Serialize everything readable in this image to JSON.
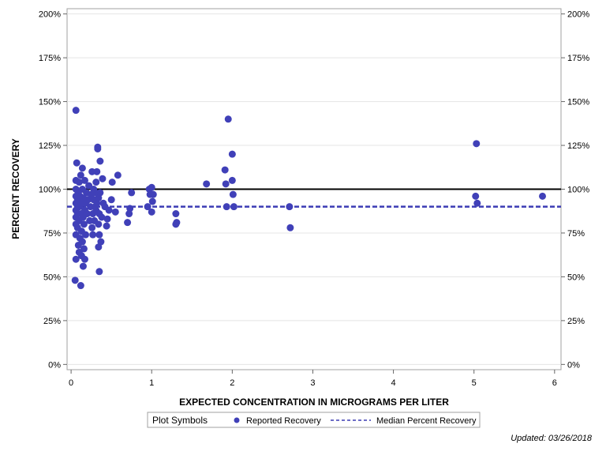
{
  "chart_data": {
    "type": "scatter",
    "xlabel": "EXPECTED CONCENTRATION IN MICROGRAMS PER LITER",
    "ylabel": "PERCENT RECOVERY",
    "xlim": [
      -0.05,
      6.08
    ],
    "ylim": [
      -3,
      203
    ],
    "x_ticks": [
      0,
      1,
      2,
      3,
      4,
      5,
      6
    ],
    "x_tick_labels": [
      "0",
      "1",
      "2",
      "3",
      "4",
      "5",
      "6"
    ],
    "y_ticks": [
      0,
      25,
      50,
      75,
      100,
      125,
      150,
      175,
      200
    ],
    "y_tick_labels": [
      "0%",
      "25%",
      "50%",
      "75%",
      "100%",
      "125%",
      "150%",
      "175%",
      "200%"
    ],
    "grid": "horizontal",
    "reference_lines": [
      {
        "name": "100% recovery",
        "y": 100,
        "style": "solid",
        "color": "#000000"
      },
      {
        "name": "Median Percent Recovery",
        "y": 90,
        "style": "dashed",
        "color": "#3c3cb4"
      }
    ],
    "series": [
      {
        "name": "Reported Recovery",
        "color": "#4040b8",
        "points": [
          [
            0.06,
            145
          ],
          [
            0.05,
            48
          ],
          [
            0.06,
            60
          ],
          [
            0.06,
            74
          ],
          [
            0.06,
            80
          ],
          [
            0.06,
            84
          ],
          [
            0.06,
            88
          ],
          [
            0.06,
            92
          ],
          [
            0.06,
            96
          ],
          [
            0.06,
            100
          ],
          [
            0.06,
            105
          ],
          [
            0.07,
            115
          ],
          [
            0.08,
            78
          ],
          [
            0.08,
            86
          ],
          [
            0.08,
            94
          ],
          [
            0.09,
            68
          ],
          [
            0.09,
            98
          ],
          [
            0.1,
            64
          ],
          [
            0.1,
            82
          ],
          [
            0.1,
            90
          ],
          [
            0.1,
            104
          ],
          [
            0.11,
            72
          ],
          [
            0.11,
            96
          ],
          [
            0.12,
            45
          ],
          [
            0.12,
            86
          ],
          [
            0.12,
            108
          ],
          [
            0.13,
            62
          ],
          [
            0.13,
            76
          ],
          [
            0.13,
            92
          ],
          [
            0.14,
            70
          ],
          [
            0.14,
            100
          ],
          [
            0.14,
            112
          ],
          [
            0.15,
            56
          ],
          [
            0.15,
            84
          ],
          [
            0.15,
            95
          ],
          [
            0.16,
            66
          ],
          [
            0.16,
            80
          ],
          [
            0.17,
            60
          ],
          [
            0.17,
            88
          ],
          [
            0.17,
            105
          ],
          [
            0.18,
            74
          ],
          [
            0.18,
            92
          ],
          [
            0.19,
            98
          ],
          [
            0.2,
            86
          ],
          [
            0.21,
            94
          ],
          [
            0.22,
            102
          ],
          [
            0.23,
            82
          ],
          [
            0.24,
            90
          ],
          [
            0.25,
            97
          ],
          [
            0.26,
            78
          ],
          [
            0.26,
            110
          ],
          [
            0.27,
            74
          ],
          [
            0.27,
            86
          ],
          [
            0.28,
            94
          ],
          [
            0.28,
            100
          ],
          [
            0.29,
            82
          ],
          [
            0.3,
            90
          ],
          [
            0.3,
            98
          ],
          [
            0.31,
            88
          ],
          [
            0.31,
            104
          ],
          [
            0.32,
            92
          ],
          [
            0.32,
            110
          ],
          [
            0.33,
            124
          ],
          [
            0.33,
            123
          ],
          [
            0.34,
            80
          ],
          [
            0.34,
            67
          ],
          [
            0.34,
            95
          ],
          [
            0.35,
            53
          ],
          [
            0.35,
            74
          ],
          [
            0.35,
            86
          ],
          [
            0.36,
            98
          ],
          [
            0.36,
            116
          ],
          [
            0.37,
            70
          ],
          [
            0.38,
            84
          ],
          [
            0.39,
            106
          ],
          [
            0.4,
            92
          ],
          [
            0.42,
            90
          ],
          [
            0.44,
            79
          ],
          [
            0.45,
            83
          ],
          [
            0.47,
            88
          ],
          [
            0.5,
            94
          ],
          [
            0.51,
            104
          ],
          [
            0.55,
            87
          ],
          [
            0.58,
            108
          ],
          [
            0.7,
            81
          ],
          [
            0.72,
            86
          ],
          [
            0.73,
            89
          ],
          [
            0.75,
            98
          ],
          [
            0.95,
            90
          ],
          [
            0.97,
            100
          ],
          [
            0.98,
            97
          ],
          [
            1.0,
            101
          ],
          [
            1.0,
            87
          ],
          [
            1.01,
            93
          ],
          [
            1.02,
            97
          ],
          [
            1.3,
            80
          ],
          [
            1.3,
            86
          ],
          [
            1.31,
            81
          ],
          [
            1.68,
            103
          ],
          [
            1.91,
            111
          ],
          [
            1.92,
            103
          ],
          [
            1.93,
            90
          ],
          [
            1.95,
            140
          ],
          [
            2.0,
            105
          ],
          [
            2.0,
            120
          ],
          [
            2.01,
            97
          ],
          [
            2.02,
            90
          ],
          [
            2.71,
            90
          ],
          [
            2.72,
            78
          ],
          [
            5.02,
            96
          ],
          [
            5.03,
            126
          ],
          [
            5.04,
            92
          ],
          [
            5.85,
            96
          ]
        ]
      }
    ],
    "legend": {
      "title": "Plot Symbols",
      "position": "bottom-center",
      "entries": [
        {
          "label": "Reported Recovery",
          "symbol": "dot"
        },
        {
          "label": "Median Percent Recovery",
          "symbol": "dashed-line"
        }
      ]
    }
  },
  "footer": {
    "updated": "Updated: 03/26/2018"
  }
}
